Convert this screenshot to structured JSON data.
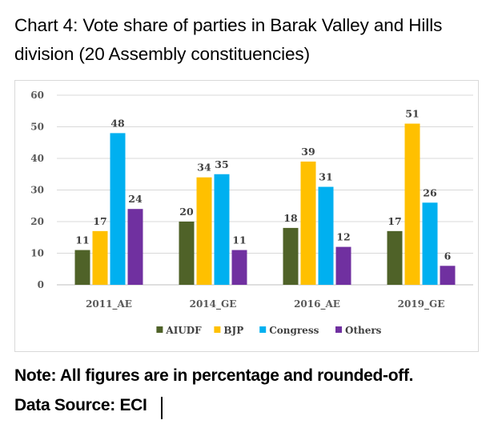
{
  "title_line1": "Chart 4: Vote share of parties in Barak Valley and Hills",
  "title_line2": "division (20 Assembly constituencies)",
  "note": "Note: All figures are in percentage and rounded-off.",
  "source": "Data Source: ECI",
  "chart_data": {
    "type": "bar",
    "categories": [
      "2011_AE",
      "2014_GE",
      "2016_AE",
      "2019_GE"
    ],
    "series": [
      {
        "name": "AIUDF",
        "color": "#4f6228",
        "values": [
          11,
          20,
          18,
          17
        ]
      },
      {
        "name": "BJP",
        "color": "#ffc000",
        "values": [
          17,
          34,
          39,
          51
        ]
      },
      {
        "name": "Congress",
        "color": "#00b0f0",
        "values": [
          48,
          35,
          31,
          26
        ]
      },
      {
        "name": "Others",
        "color": "#7030a0",
        "values": [
          24,
          11,
          12,
          6
        ]
      }
    ],
    "ylim": [
      0,
      60
    ],
    "yticks": [
      0,
      10,
      20,
      30,
      40,
      50,
      60
    ],
    "grid": true,
    "legend": "bottom"
  }
}
